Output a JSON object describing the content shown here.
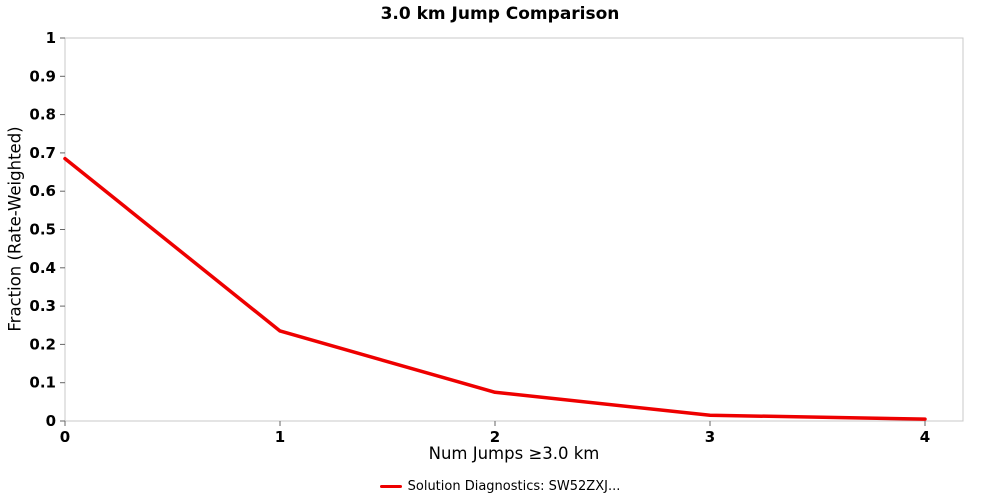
{
  "chart_data": {
    "type": "line",
    "title": "3.0 km Jump Comparison",
    "xlabel": "Num Jumps ≥3.0 km",
    "ylabel": "Fraction (Rate-Weighted)",
    "x": [
      0,
      1,
      2,
      3,
      4
    ],
    "series": [
      {
        "name": "Solution Diagnostics: SW52ZXJ...",
        "color": "#ee0000",
        "values": [
          0.685,
          0.235,
          0.075,
          0.015,
          0.005
        ]
      }
    ],
    "xlim": [
      0,
      4
    ],
    "ylim": [
      0,
      1
    ],
    "x_ticks": [
      0,
      1,
      2,
      3,
      4
    ],
    "y_ticks": [
      0,
      0.1,
      0.2,
      0.3,
      0.4,
      0.5,
      0.6,
      0.7,
      0.8,
      0.9,
      1
    ],
    "grid": false,
    "legend_position": "bottom",
    "axis_border_color": "#c8c8c8",
    "tick_color": "#666666"
  }
}
